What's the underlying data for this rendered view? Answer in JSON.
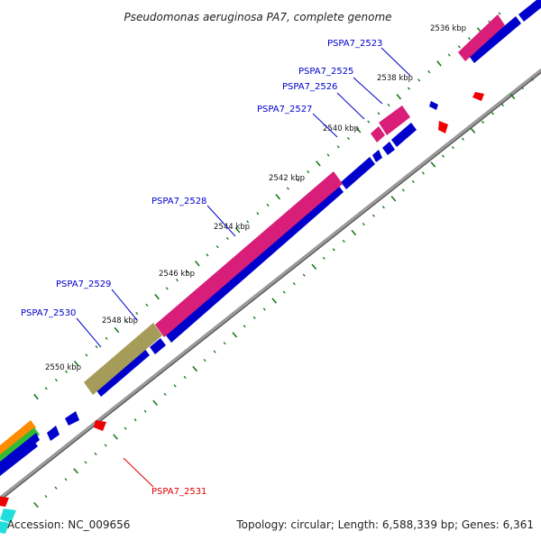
{
  "title": "Pseudomonas aeruginosa PA7, complete genome",
  "footer": {
    "accession": "Accession: NC_009656",
    "topology": "Topology: circular; Length: 6,588,339 bp; Genes: 6,361"
  },
  "ticks": [
    "2536 kbp",
    "2538 kbp",
    "2540 kbp",
    "2542 kbp",
    "2544 kbp",
    "2546 kbp",
    "2548 kbp",
    "2550 kbp"
  ],
  "genes": [
    {
      "label": "PSPA7_2523",
      "color": "#0000cc"
    },
    {
      "label": "PSPA7_2525",
      "color": "#0000cc"
    },
    {
      "label": "PSPA7_2526",
      "color": "#0000cc"
    },
    {
      "label": "PSPA7_2527",
      "color": "#0000cc"
    },
    {
      "label": "PSPA7_2528",
      "color": "#0000cc"
    },
    {
      "label": "PSPA7_2529",
      "color": "#0000cc"
    },
    {
      "label": "PSPA7_2530",
      "color": "#0000cc"
    },
    {
      "label": "PSPA7_2531",
      "color": "#dd0000"
    }
  ],
  "colors": {
    "cds_blue": "#0000ee",
    "highlight_pink": "#ee2a8a",
    "highlight_olive": "#b5ac6e",
    "backbone": "#888888",
    "tick_green": "#1a7a1a",
    "reverse_red": "#ee0000",
    "cyan": "#22dddd",
    "orange": "#ff8c00",
    "green": "#33bb33"
  }
}
